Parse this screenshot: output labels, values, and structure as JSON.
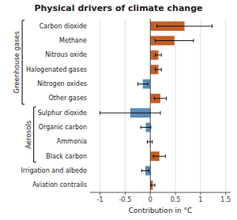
{
  "chart_data": {
    "type": "bar",
    "orientation": "horizontal",
    "title": "Physical drivers of climate change",
    "xlabel": "Contribution in °C",
    "categories": [
      "Carbon dioxide",
      "Methane",
      "Nitrous oxide",
      "Halogenated gases",
      "Nitrogen oxides",
      "Other gases",
      "Sulphur dioxide",
      "Organic carbon",
      "Ammonia",
      "Black carbon",
      "Irrigation and albedo",
      "Aviation contrails"
    ],
    "values": [
      0.68,
      0.48,
      0.16,
      0.16,
      -0.15,
      0.2,
      -0.4,
      -0.09,
      -0.01,
      0.18,
      -0.1,
      0.05
    ],
    "errors": [
      0.55,
      0.38,
      0.06,
      0.06,
      0.1,
      0.12,
      0.6,
      0.1,
      0.05,
      0.12,
      0.07,
      0.04
    ],
    "colors": [
      "#c1602a",
      "#c1602a",
      "#c1602a",
      "#c1602a",
      "#5b8db8",
      "#c1602a",
      "#5b8db8",
      "#5b8db8",
      "#5b8db8",
      "#c1602a",
      "#5b8db8",
      "#c1602a"
    ],
    "xlim": [
      -1.2,
      1.6
    ],
    "xticks": [
      -1,
      -0.5,
      0,
      0.5,
      1,
      1.5
    ],
    "grid": true,
    "groups": [
      {
        "name": "Greenhouse gases",
        "first": "Carbon dioxide",
        "last": "Other gases"
      },
      {
        "name": "Aerosols",
        "first": "Sulphur dioxide",
        "last": "Black carbon"
      }
    ]
  }
}
